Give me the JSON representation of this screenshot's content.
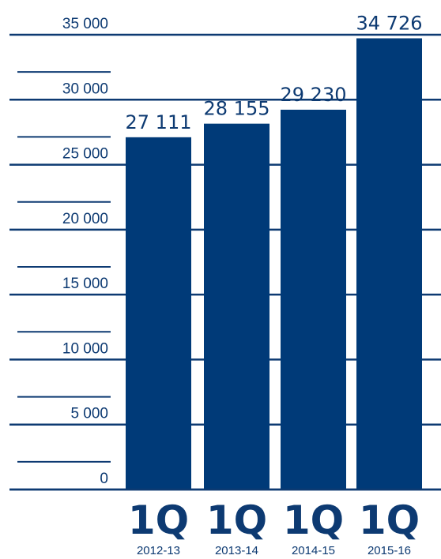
{
  "chart_data": {
    "type": "bar",
    "categories": [
      "2012-13",
      "2013-14",
      "2014-15",
      "2015-16"
    ],
    "category_prefix": "1Q",
    "values": [
      27111,
      28155,
      29230,
      34726
    ],
    "value_labels": [
      "27 111",
      "28 155",
      "29 230",
      "34 726"
    ],
    "yticks": [
      0,
      5000,
      10000,
      15000,
      20000,
      25000,
      30000,
      35000
    ],
    "ytick_labels": [
      "0",
      "5 000",
      "10 000",
      "15 000",
      "20 000",
      "25 000",
      "30 000",
      "35 000"
    ],
    "ylim": [
      0,
      35000
    ],
    "title": "",
    "xlabel": "",
    "ylabel": "",
    "grid": true,
    "colors": {
      "bar": "#003a78",
      "text": "#0d3a72",
      "grid": "#0d3a72"
    }
  }
}
